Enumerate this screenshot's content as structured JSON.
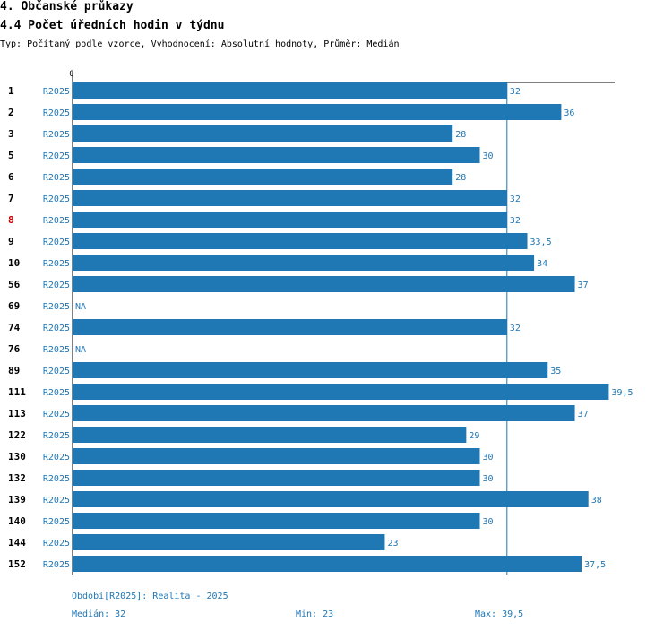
{
  "header": {
    "section_title": "4. Občanské průkazy",
    "chart_title": "4.4 Počet úředních hodin v týdnu",
    "meta_line": "Typ: Počítaný podle vzorce, Vyhodnocení: Absolutní hodnoty, Průměr: Medián"
  },
  "colors": {
    "bar": "#1f77b4",
    "label_text": "#1f77b4",
    "row_id": "#000000",
    "highlight_row_id": "#cc0000"
  },
  "chart_data": {
    "type": "bar",
    "orientation": "horizontal",
    "axis_zero_label": "0",
    "xlim": [
      0,
      40
    ],
    "median_line": 32,
    "highlight_id": "8",
    "categories": [
      "1",
      "2",
      "3",
      "5",
      "6",
      "7",
      "8",
      "9",
      "10",
      "56",
      "69",
      "74",
      "76",
      "89",
      "111",
      "113",
      "122",
      "130",
      "132",
      "139",
      "140",
      "144",
      "152"
    ],
    "series": [
      {
        "name": "R2025",
        "values": [
          32,
          36,
          28,
          30,
          28,
          32,
          32,
          33.5,
          34,
          37,
          null,
          32,
          null,
          35,
          39.5,
          37,
          29,
          30,
          30,
          38,
          30,
          23,
          37.5
        ],
        "labels": [
          "32",
          "36",
          "28",
          "30",
          "28",
          "32",
          "32",
          "33,5",
          "34",
          "37",
          "NA",
          "32",
          "NA",
          "35",
          "39,5",
          "37",
          "29",
          "30",
          "30",
          "38",
          "30",
          "23",
          "37,5"
        ]
      }
    ]
  },
  "footer": {
    "period": "Období[R2025]: Realita - 2025",
    "median": "Medián: 32",
    "min": "Min: 23",
    "max": "Max: 39,5"
  }
}
